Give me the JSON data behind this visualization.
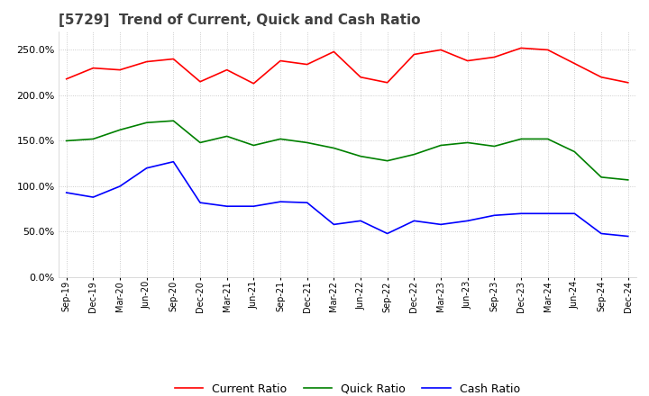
{
  "title": "[5729]  Trend of Current, Quick and Cash Ratio",
  "x_labels": [
    "Sep-19",
    "Dec-19",
    "Mar-20",
    "Jun-20",
    "Sep-20",
    "Dec-20",
    "Mar-21",
    "Jun-21",
    "Sep-21",
    "Dec-21",
    "Mar-22",
    "Jun-22",
    "Sep-22",
    "Dec-22",
    "Mar-23",
    "Jun-23",
    "Sep-23",
    "Dec-23",
    "Mar-24",
    "Jun-24",
    "Sep-24",
    "Dec-24"
  ],
  "current_ratio": [
    218,
    230,
    228,
    237,
    240,
    215,
    228,
    213,
    238,
    234,
    248,
    220,
    214,
    245,
    250,
    238,
    242,
    252,
    250,
    235,
    220,
    214
  ],
  "quick_ratio": [
    150,
    152,
    162,
    170,
    172,
    148,
    155,
    145,
    152,
    148,
    142,
    133,
    128,
    135,
    145,
    148,
    144,
    152,
    152,
    138,
    110,
    107
  ],
  "cash_ratio": [
    93,
    88,
    100,
    120,
    127,
    82,
    78,
    78,
    83,
    82,
    58,
    62,
    48,
    62,
    58,
    62,
    68,
    70,
    70,
    70,
    48,
    45
  ],
  "current_color": "#ff0000",
  "quick_color": "#008000",
  "cash_color": "#0000ff",
  "ylim": [
    0,
    270
  ],
  "yticks": [
    0,
    50,
    100,
    150,
    200,
    250
  ],
  "background_color": "#ffffff",
  "grid_color": "#b0b0b0",
  "title_color": "#404040",
  "title_fontsize": 11
}
